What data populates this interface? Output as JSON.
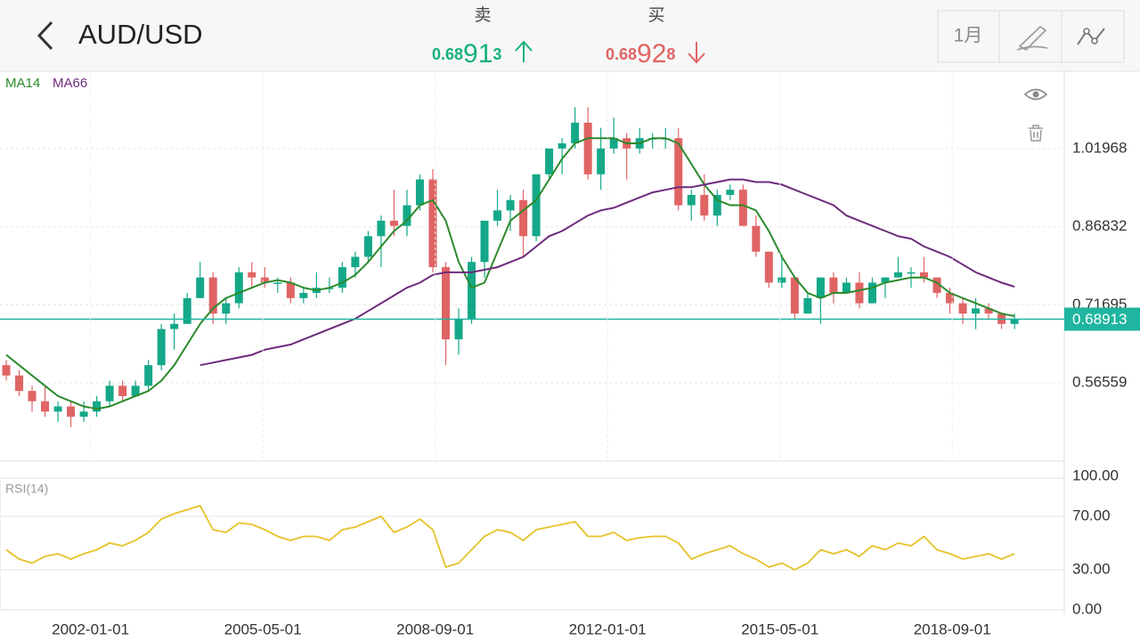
{
  "header": {
    "title": "AUD/USD",
    "sell": {
      "label": "卖",
      "price_parts": [
        "0.68",
        "91",
        "3"
      ]
    },
    "buy": {
      "label": "买",
      "price_parts": [
        "0.68",
        "92",
        "8"
      ]
    },
    "period_button": "1月"
  },
  "chart_data": [
    {
      "type": "candlestick",
      "up_color": "#14a889",
      "down_color": "#e06464",
      "last_price": 0.68913,
      "last_price_color": "#1fb5a0",
      "xlim": [
        "2000-04-01",
        "2020-11-01"
      ],
      "ylim": [
        0.4139,
        1.1698
      ],
      "yticks": [
        1.01968,
        0.86832,
        0.71695,
        0.56559
      ],
      "grid": true,
      "dates": [
        "2000-04-01",
        "2000-07-01",
        "2000-10-01",
        "2001-01-01",
        "2001-04-01",
        "2001-07-01",
        "2001-10-01",
        "2002-01-01",
        "2002-04-01",
        "2002-07-01",
        "2002-10-01",
        "2003-01-01",
        "2003-04-01",
        "2003-07-01",
        "2003-10-01",
        "2004-01-01",
        "2004-04-01",
        "2004-07-01",
        "2004-10-01",
        "2005-01-01",
        "2005-04-01",
        "2005-07-01",
        "2005-10-01",
        "2006-01-01",
        "2006-04-01",
        "2006-07-01",
        "2006-10-01",
        "2007-01-01",
        "2007-04-01",
        "2007-07-01",
        "2007-10-01",
        "2008-01-01",
        "2008-04-01",
        "2008-07-01",
        "2008-10-01",
        "2009-01-01",
        "2009-04-01",
        "2009-07-01",
        "2009-10-01",
        "2010-01-01",
        "2010-04-01",
        "2010-07-01",
        "2010-10-01",
        "2011-01-01",
        "2011-04-01",
        "2011-07-01",
        "2011-10-01",
        "2012-01-01",
        "2012-04-01",
        "2012-07-01",
        "2012-10-01",
        "2013-01-01",
        "2013-04-01",
        "2013-07-01",
        "2013-10-01",
        "2014-01-01",
        "2014-04-01",
        "2014-07-01",
        "2014-10-01",
        "2015-01-01",
        "2015-04-01",
        "2015-07-01",
        "2015-10-01",
        "2016-01-01",
        "2016-04-01",
        "2016-07-01",
        "2016-10-01",
        "2017-01-01",
        "2017-04-01",
        "2017-07-01",
        "2017-10-01",
        "2018-01-01",
        "2018-04-01",
        "2018-07-01",
        "2018-10-01",
        "2019-01-01",
        "2019-04-01",
        "2019-07-01",
        "2019-10-01"
      ],
      "open": [
        0.6,
        0.58,
        0.55,
        0.53,
        0.51,
        0.52,
        0.5,
        0.51,
        0.53,
        0.56,
        0.54,
        0.56,
        0.6,
        0.67,
        0.68,
        0.73,
        0.77,
        0.7,
        0.72,
        0.78,
        0.77,
        0.76,
        0.76,
        0.73,
        0.74,
        0.75,
        0.75,
        0.79,
        0.81,
        0.85,
        0.88,
        0.87,
        0.91,
        0.96,
        0.79,
        0.65,
        0.69,
        0.8,
        0.88,
        0.9,
        0.92,
        0.85,
        0.97,
        1.02,
        1.03,
        1.07,
        0.97,
        1.02,
        1.04,
        1.02,
        1.04,
        1.04,
        1.04,
        0.91,
        0.93,
        0.89,
        0.93,
        0.94,
        0.87,
        0.82,
        0.76,
        0.77,
        0.7,
        0.73,
        0.77,
        0.74,
        0.76,
        0.72,
        0.76,
        0.77,
        0.78,
        0.78,
        0.77,
        0.74,
        0.72,
        0.7,
        0.71,
        0.7,
        0.68
      ],
      "high": [
        0.61,
        0.59,
        0.56,
        0.56,
        0.53,
        0.53,
        0.53,
        0.54,
        0.57,
        0.57,
        0.57,
        0.61,
        0.68,
        0.7,
        0.74,
        0.8,
        0.78,
        0.73,
        0.79,
        0.8,
        0.79,
        0.77,
        0.77,
        0.75,
        0.78,
        0.77,
        0.8,
        0.82,
        0.86,
        0.89,
        0.94,
        0.94,
        0.97,
        0.98,
        0.8,
        0.71,
        0.81,
        0.88,
        0.94,
        0.93,
        0.94,
        0.97,
        1.02,
        1.04,
        1.1,
        1.1,
        1.06,
        1.08,
        1.05,
        1.06,
        1.05,
        1.06,
        1.06,
        0.94,
        0.97,
        0.94,
        0.95,
        0.95,
        0.89,
        0.82,
        0.81,
        0.77,
        0.74,
        0.77,
        0.78,
        0.77,
        0.78,
        0.77,
        0.77,
        0.81,
        0.79,
        0.81,
        0.77,
        0.75,
        0.73,
        0.73,
        0.72,
        0.7,
        0.7
      ],
      "low": [
        0.57,
        0.54,
        0.51,
        0.5,
        0.49,
        0.48,
        0.49,
        0.5,
        0.52,
        0.53,
        0.54,
        0.55,
        0.59,
        0.63,
        0.68,
        0.73,
        0.68,
        0.68,
        0.71,
        0.75,
        0.75,
        0.74,
        0.72,
        0.72,
        0.73,
        0.74,
        0.74,
        0.77,
        0.8,
        0.79,
        0.85,
        0.85,
        0.9,
        0.78,
        0.6,
        0.62,
        0.68,
        0.77,
        0.87,
        0.86,
        0.81,
        0.84,
        0.96,
        0.97,
        1.02,
        0.96,
        0.94,
        1.01,
        0.96,
        1.01,
        1.02,
        1.02,
        0.9,
        0.88,
        0.88,
        0.87,
        0.92,
        0.87,
        0.81,
        0.75,
        0.75,
        0.69,
        0.7,
        0.68,
        0.72,
        0.74,
        0.71,
        0.72,
        0.73,
        0.77,
        0.75,
        0.76,
        0.73,
        0.7,
        0.68,
        0.67,
        0.69,
        0.67,
        0.67
      ],
      "close": [
        0.58,
        0.55,
        0.53,
        0.51,
        0.52,
        0.5,
        0.51,
        0.53,
        0.56,
        0.54,
        0.56,
        0.6,
        0.67,
        0.68,
        0.73,
        0.77,
        0.7,
        0.72,
        0.78,
        0.77,
        0.76,
        0.76,
        0.73,
        0.74,
        0.75,
        0.75,
        0.79,
        0.81,
        0.85,
        0.88,
        0.87,
        0.91,
        0.96,
        0.79,
        0.65,
        0.69,
        0.8,
        0.88,
        0.9,
        0.92,
        0.85,
        0.97,
        1.02,
        1.03,
        1.07,
        0.97,
        1.02,
        1.04,
        1.02,
        1.04,
        1.04,
        1.04,
        0.91,
        0.93,
        0.89,
        0.93,
        0.94,
        0.87,
        0.82,
        0.76,
        0.77,
        0.7,
        0.73,
        0.77,
        0.74,
        0.76,
        0.72,
        0.76,
        0.77,
        0.78,
        0.78,
        0.77,
        0.74,
        0.72,
        0.7,
        0.71,
        0.7,
        0.68,
        0.69
      ],
      "series": [
        {
          "name": "MA14",
          "color": "#2c8a2c",
          "values": [
            0.62,
            0.6,
            0.58,
            0.56,
            0.54,
            0.53,
            0.52,
            0.515,
            0.52,
            0.53,
            0.54,
            0.55,
            0.57,
            0.6,
            0.64,
            0.68,
            0.71,
            0.73,
            0.74,
            0.75,
            0.76,
            0.765,
            0.76,
            0.75,
            0.745,
            0.75,
            0.76,
            0.775,
            0.8,
            0.83,
            0.86,
            0.88,
            0.91,
            0.92,
            0.88,
            0.8,
            0.75,
            0.76,
            0.82,
            0.88,
            0.9,
            0.92,
            0.96,
            1.0,
            1.03,
            1.04,
            1.04,
            1.04,
            1.03,
            1.03,
            1.04,
            1.04,
            1.03,
            0.99,
            0.95,
            0.92,
            0.91,
            0.91,
            0.9,
            0.86,
            0.81,
            0.77,
            0.74,
            0.73,
            0.74,
            0.74,
            0.745,
            0.75,
            0.76,
            0.765,
            0.77,
            0.77,
            0.76,
            0.74,
            0.73,
            0.72,
            0.71,
            0.7,
            0.695
          ]
        },
        {
          "name": "MA66",
          "color": "#6e2b7c",
          "values": [
            null,
            null,
            null,
            null,
            null,
            null,
            null,
            null,
            null,
            null,
            null,
            null,
            null,
            null,
            null,
            0.6,
            0.605,
            0.61,
            0.615,
            0.62,
            0.63,
            0.635,
            0.64,
            0.65,
            0.66,
            0.67,
            0.68,
            0.69,
            0.705,
            0.72,
            0.735,
            0.75,
            0.76,
            0.775,
            0.78,
            0.78,
            0.78,
            0.785,
            0.79,
            0.8,
            0.81,
            0.83,
            0.85,
            0.86,
            0.875,
            0.89,
            0.9,
            0.905,
            0.915,
            0.925,
            0.935,
            0.94,
            0.945,
            0.945,
            0.95,
            0.955,
            0.96,
            0.96,
            0.955,
            0.955,
            0.95,
            0.94,
            0.93,
            0.92,
            0.91,
            0.89,
            0.88,
            0.87,
            0.86,
            0.85,
            0.845,
            0.83,
            0.82,
            0.81,
            0.795,
            0.78,
            0.77,
            0.76,
            0.752
          ]
        }
      ]
    },
    {
      "type": "line",
      "title": "RSI(14)",
      "xlim": [
        "2000-04-01",
        "2020-11-01"
      ],
      "ylim": [
        0,
        100
      ],
      "yticks": [
        {
          "value": 100,
          "label": "100.00"
        },
        {
          "value": 70,
          "label": "70.00"
        },
        {
          "value": 30,
          "label": "30.00"
        },
        {
          "value": 0,
          "label": "0.00"
        }
      ],
      "xticks": [
        "2002-01-01",
        "2005-05-01",
        "2008-09-01",
        "2012-01-01",
        "2015-05-01",
        "2018-09-01"
      ],
      "series": [
        {
          "name": "RSI(14)",
          "color": "#e6c22a",
          "values": [
            45,
            38,
            35,
            40,
            42,
            38,
            42,
            45,
            50,
            48,
            52,
            58,
            68,
            72,
            75,
            78,
            60,
            58,
            65,
            64,
            60,
            55,
            52,
            55,
            55,
            52,
            60,
            62,
            66,
            70,
            58,
            62,
            68,
            60,
            32,
            35,
            45,
            55,
            60,
            58,
            52,
            60,
            62,
            64,
            66,
            55,
            55,
            58,
            52,
            54,
            55,
            55,
            50,
            38,
            42,
            45,
            48,
            42,
            38,
            32,
            35,
            30,
            35,
            45,
            42,
            45,
            40,
            48,
            45,
            50,
            48,
            55,
            45,
            42,
            38,
            40,
            42,
            38,
            42
          ]
        }
      ]
    }
  ]
}
